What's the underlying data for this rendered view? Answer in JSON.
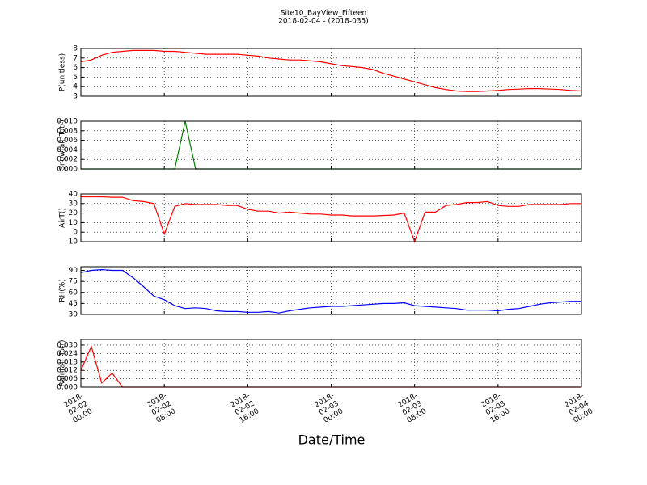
{
  "title": "Site10_BayView_Fifteen",
  "subtitle": "2018-02-04 - (2018-035)",
  "chart_data": [
    {
      "type": "line",
      "ylabel": "P(unitless)",
      "ylim": [
        3,
        8
      ],
      "yticks": [
        3,
        4,
        5,
        6,
        7,
        8
      ],
      "grid": true,
      "series": [
        {
          "color": "#ff0000",
          "values": [
            6.6,
            6.8,
            7.3,
            7.6,
            7.7,
            7.8,
            7.8,
            7.8,
            7.7,
            7.7,
            7.6,
            7.5,
            7.4,
            7.4,
            7.4,
            7.4,
            7.3,
            7.2,
            7.0,
            6.9,
            6.8,
            6.8,
            6.7,
            6.6,
            6.4,
            6.2,
            6.1,
            6.0,
            5.8,
            5.4,
            5.1,
            4.8,
            4.5,
            4.2,
            3.9,
            3.7,
            3.55,
            3.5,
            3.5,
            3.55,
            3.6,
            3.7,
            3.75,
            3.8,
            3.8,
            3.75,
            3.7,
            3.6,
            3.55
          ]
        }
      ]
    },
    {
      "type": "line",
      "ylabel": "Snowfall_Tot()",
      "ylim": [
        0,
        0.01
      ],
      "yticks": [
        {
          "value": 0,
          "label": "0.000"
        },
        {
          "value": 0.002,
          "label": "0.002"
        },
        {
          "value": 0.004,
          "label": "0.004"
        },
        {
          "value": 0.006,
          "label": "0.006"
        },
        {
          "value": 0.008,
          "label": "0.008"
        },
        {
          "value": 0.01,
          "label": "0.010"
        }
      ],
      "grid": true,
      "series": [
        {
          "color": "#007f00",
          "values": [
            0,
            0,
            0,
            0,
            0,
            0,
            0,
            0,
            0,
            0,
            0.01,
            0,
            0,
            0,
            0,
            0,
            0,
            0,
            0,
            0,
            0,
            0,
            0,
            0,
            0,
            0,
            0,
            0,
            0,
            0,
            0,
            0,
            0,
            0,
            0,
            0,
            0,
            0,
            0,
            0,
            0,
            0,
            0,
            0,
            0,
            0,
            0,
            0,
            0
          ]
        }
      ]
    },
    {
      "type": "line",
      "ylabel": "AirT()",
      "ylim": [
        -10,
        40
      ],
      "yticks": [
        -10,
        0,
        10,
        20,
        30,
        40
      ],
      "grid": true,
      "series": [
        {
          "color": "#ff0000",
          "values": [
            37,
            37,
            37,
            36.5,
            36.5,
            33,
            32,
            30,
            -2,
            27,
            30,
            29,
            29,
            29,
            28,
            28,
            24,
            22,
            22,
            20,
            21,
            20,
            19,
            19,
            18,
            18,
            17,
            17,
            17,
            17.5,
            18,
            20,
            -10,
            21,
            21,
            28,
            29,
            31,
            31,
            32,
            28,
            27,
            27,
            29,
            29,
            29,
            29,
            30,
            30
          ]
        }
      ]
    },
    {
      "type": "line",
      "ylabel": "RH(%)",
      "ylim": [
        30,
        95
      ],
      "yticks": [
        30,
        45,
        60,
        75,
        90
      ],
      "grid": true,
      "series": [
        {
          "color": "#0000ff",
          "values": [
            87,
            90,
            91,
            90,
            90,
            80,
            68,
            55,
            50,
            42,
            38,
            39,
            38,
            35,
            34,
            34,
            33,
            33,
            34,
            32,
            35,
            37,
            39,
            40,
            41,
            41,
            42,
            43,
            44,
            45,
            45,
            46,
            42,
            41,
            40,
            39,
            38,
            36,
            36,
            36,
            35,
            37,
            38,
            41,
            44,
            46,
            47,
            48,
            48
          ]
        }
      ]
    },
    {
      "type": "line",
      "ylabel": "Rainfall_Tot()",
      "ylim": [
        0,
        0.034
      ],
      "yticks": [
        {
          "value": 0,
          "label": "0.000"
        },
        {
          "value": 0.006,
          "label": "0.006"
        },
        {
          "value": 0.012,
          "label": "0.012"
        },
        {
          "value": 0.018,
          "label": "0.018"
        },
        {
          "value": 0.024,
          "label": "0.024"
        },
        {
          "value": 0.03,
          "label": "0.030"
        }
      ],
      "grid": true,
      "series": [
        {
          "color": "#ff0000",
          "values": [
            0.012,
            0.029,
            0.003,
            0.01,
            0,
            0,
            0,
            0,
            0,
            0,
            0,
            0,
            0,
            0,
            0,
            0,
            0,
            0,
            0,
            0,
            0,
            0,
            0,
            0,
            0,
            0,
            0,
            0,
            0,
            0,
            0,
            0,
            0,
            0,
            0,
            0,
            0,
            0,
            0,
            0,
            0,
            0,
            0,
            0,
            0,
            0,
            0,
            0,
            0
          ]
        }
      ],
      "xlabel": "Date/Time",
      "xlim": [
        "2018-02-02 00:00",
        "2018-02-04 00:00"
      ],
      "xticks": [
        "2018-02-02 00:00",
        "2018-02-02 08:00",
        "2018-02-02 16:00",
        "2018-02-03 00:00",
        "2018-02-03 08:00",
        "2018-02-03 16:00",
        "2018-02-04 00:00"
      ],
      "x": [
        "2018-02-02 00:00",
        "2018-02-02 01:00",
        "2018-02-02 02:00",
        "2018-02-02 03:00",
        "2018-02-02 04:00",
        "2018-02-02 05:00",
        "2018-02-02 06:00",
        "2018-02-02 07:00",
        "2018-02-02 08:00",
        "2018-02-02 09:00",
        "2018-02-02 10:00",
        "2018-02-02 11:00",
        "2018-02-02 12:00",
        "2018-02-02 13:00",
        "2018-02-02 14:00",
        "2018-02-02 15:00",
        "2018-02-02 16:00",
        "2018-02-02 17:00",
        "2018-02-02 18:00",
        "2018-02-02 19:00",
        "2018-02-02 20:00",
        "2018-02-02 21:00",
        "2018-02-02 22:00",
        "2018-02-02 23:00",
        "2018-02-03 00:00",
        "2018-02-03 01:00",
        "2018-02-03 02:00",
        "2018-02-03 03:00",
        "2018-02-03 04:00",
        "2018-02-03 05:00",
        "2018-02-03 06:00",
        "2018-02-03 07:00",
        "2018-02-03 08:00",
        "2018-02-03 09:00",
        "2018-02-03 10:00",
        "2018-02-03 11:00",
        "2018-02-03 12:00",
        "2018-02-03 13:00",
        "2018-02-03 14:00",
        "2018-02-03 15:00",
        "2018-02-03 16:00",
        "2018-02-03 17:00",
        "2018-02-03 18:00",
        "2018-02-03 19:00",
        "2018-02-03 20:00",
        "2018-02-03 21:00",
        "2018-02-03 22:00",
        "2018-02-03 23:00",
        "2018-02-04 00:00"
      ]
    }
  ]
}
